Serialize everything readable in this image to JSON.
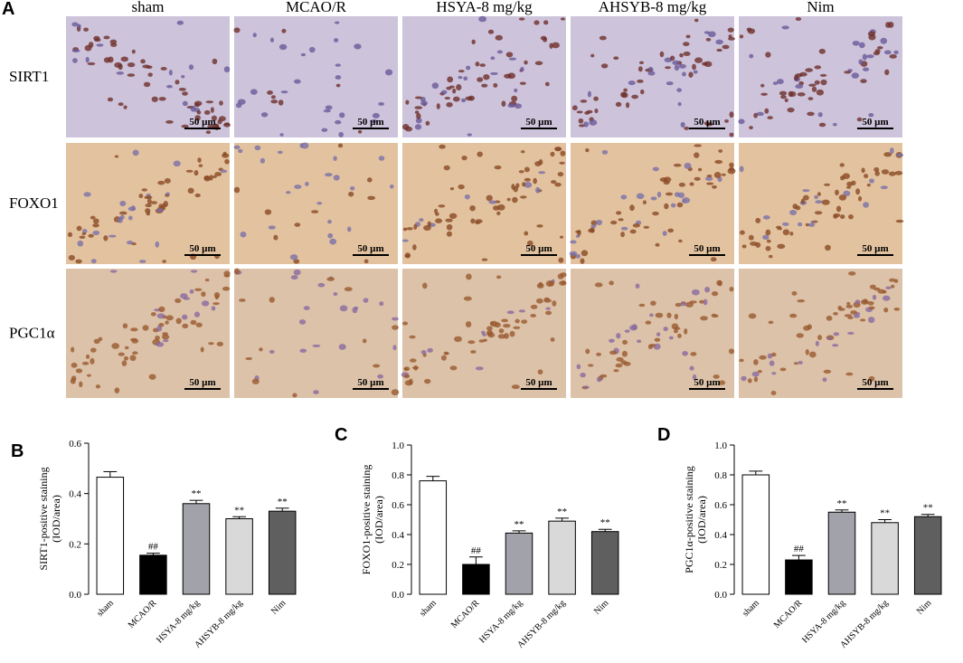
{
  "panel_a": {
    "panel": "A",
    "columns": [
      "sham",
      "MCAO/R",
      "HSYA-8 mg/kg",
      "AHSYB-8 mg/kg",
      "Nim"
    ],
    "rows": [
      "SIRT1",
      "FOXO1",
      "PGC1α"
    ],
    "scale_bar": "50 µm"
  },
  "chart_data": [
    {
      "type": "bar",
      "panel": "B",
      "ylabel": [
        "SIRT1-positive staining",
        "(IOD/area)"
      ],
      "categories": [
        "sham",
        "MCAO/R",
        "HSYA-8 mg/kg",
        "AHSYB-8 mg/kg",
        "Nim"
      ],
      "values": [
        0.465,
        0.155,
        0.36,
        0.3,
        0.33
      ],
      "errors": [
        0.022,
        0.008,
        0.013,
        0.008,
        0.012
      ],
      "annotations": [
        null,
        "##",
        "**",
        "**",
        "**"
      ],
      "colors": [
        "#ffffff",
        "#000000",
        "#a2a2aa",
        "#d9d9d9",
        "#5f5f5f"
      ],
      "ylim": [
        0,
        0.6
      ],
      "yticks": [
        {
          "value": 0,
          "label": "0.0"
        },
        0.2,
        0.4,
        0.6
      ]
    },
    {
      "type": "bar",
      "panel": "C",
      "ylabel": [
        "FOXO1-positive staining",
        "(IOD/area)"
      ],
      "categories": [
        "sham",
        "MCAO/R",
        "HSYA-8 mg/kg",
        "AHSYB-8 mg/kg",
        "Nim"
      ],
      "values": [
        0.76,
        0.2,
        0.41,
        0.49,
        0.42
      ],
      "errors": [
        0.03,
        0.05,
        0.015,
        0.02,
        0.015
      ],
      "annotations": [
        null,
        "##",
        "**",
        "**",
        "**"
      ],
      "colors": [
        "#ffffff",
        "#000000",
        "#a2a2aa",
        "#d9d9d9",
        "#5f5f5f"
      ],
      "ylim": [
        0,
        1
      ],
      "yticks": [
        {
          "value": 0,
          "label": "0.0"
        },
        0.2,
        0.4,
        0.6,
        0.8,
        {
          "value": 1,
          "label": "1.0"
        }
      ]
    },
    {
      "type": "bar",
      "panel": "D",
      "ylabel": [
        "PGC1α-positive staining",
        "(IOD/area)"
      ],
      "categories": [
        "sham",
        "MCAO/R",
        "HSYA-8 mg/kg",
        "AHSYB-8 mg/kg",
        "Nim"
      ],
      "values": [
        0.8,
        0.23,
        0.55,
        0.48,
        0.52
      ],
      "errors": [
        0.025,
        0.03,
        0.015,
        0.02,
        0.015
      ],
      "annotations": [
        null,
        "##",
        "**",
        "**",
        "**"
      ],
      "colors": [
        "#ffffff",
        "#000000",
        "#a2a2aa",
        "#d9d9d9",
        "#5f5f5f"
      ],
      "ylim": [
        0,
        1
      ],
      "yticks": [
        {
          "value": 0,
          "label": "0.0"
        },
        0.2,
        0.4,
        0.6,
        0.8,
        {
          "value": 1,
          "label": "1.0"
        }
      ]
    }
  ]
}
